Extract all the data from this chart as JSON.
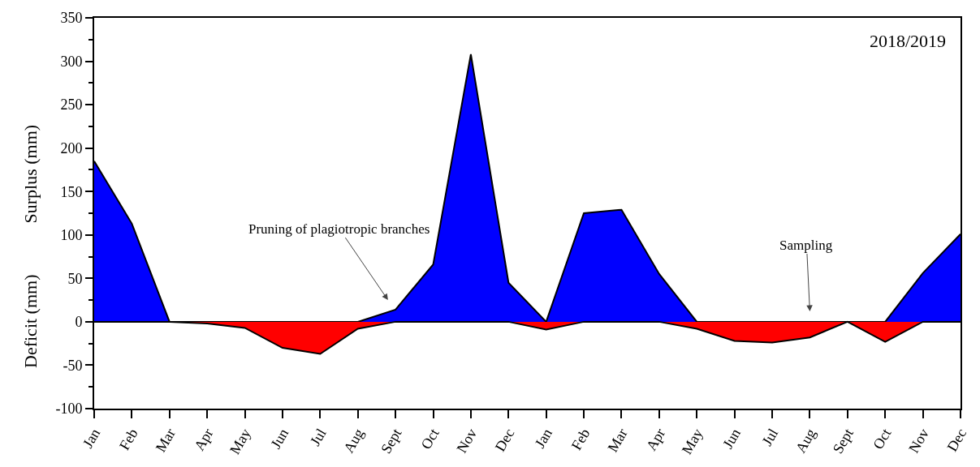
{
  "chart_data": {
    "type": "area",
    "title": "2018/2019",
    "ylabel": "Surplus (mm)",
    "annotations": [
      "Deficit (mm)",
      "Pruning of plagiotropic branches",
      "Sampling"
    ],
    "categories": [
      "Jan",
      "Feb",
      "Mar",
      "Apr",
      "May",
      "Jun",
      "Jul",
      "Aug",
      "Sept",
      "Oct",
      "Nov",
      "Dec",
      "Jan",
      "Feb",
      "Mar",
      "Apr",
      "May",
      "Jun",
      "Jul",
      "Aug",
      "Sept",
      "Oct",
      "Nov",
      "Dec"
    ],
    "series": [
      {
        "color": "#0000ff",
        "values": [
          185,
          113,
          0,
          0,
          0,
          0,
          0,
          0,
          14,
          66,
          308,
          45,
          0,
          125,
          129,
          55,
          0,
          0,
          0,
          0,
          0,
          0,
          56,
          101
        ]
      },
      {
        "color": "#ff0000",
        "values": [
          0,
          0,
          0,
          -2,
          -7,
          -30,
          -37,
          -8,
          0,
          0,
          0,
          0,
          -9,
          0,
          0,
          0,
          -8,
          -22,
          -24,
          -18,
          0,
          -23,
          0,
          0
        ]
      }
    ],
    "ylim": [
      -100,
      350
    ],
    "yticks": [
      -100,
      -50,
      0,
      50,
      100,
      150,
      200,
      250,
      300,
      350
    ],
    "grid": false,
    "marker": "none",
    "line_style": "solid"
  }
}
